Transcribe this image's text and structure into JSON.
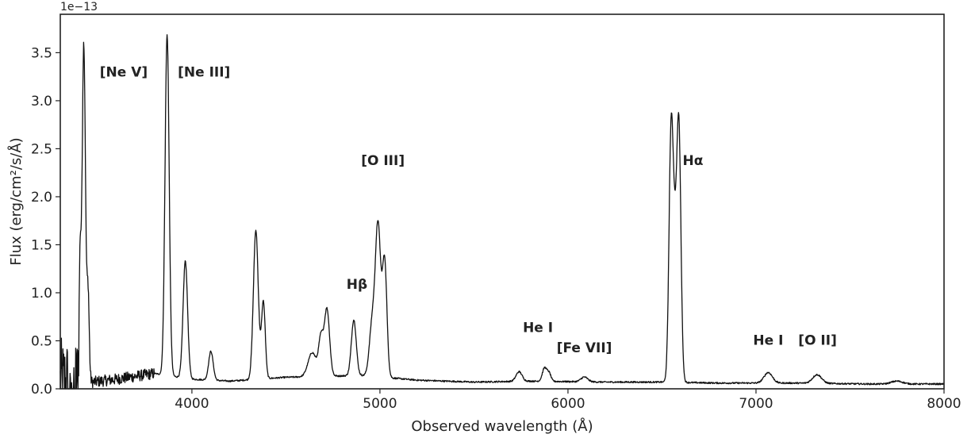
{
  "chart_data": {
    "type": "line",
    "title": "",
    "xlabel": "Observed wavelength (Å)",
    "ylabel": "Flux (erg/cm²/s/Å)",
    "y_offset_label": "1e−13",
    "xlim": [
      3300,
      8000
    ],
    "ylim": [
      0,
      3.9
    ],
    "x_ticks": [
      4000,
      5000,
      6000,
      7000,
      8000
    ],
    "x_tick_labels": [
      "4000",
      "5000",
      "6000",
      "7000",
      "8000"
    ],
    "y_ticks": [
      0.0,
      0.5,
      1.0,
      1.5,
      2.0,
      2.5,
      3.0,
      3.5
    ],
    "y_tick_labels": [
      "0.0",
      "0.5",
      "1.0",
      "1.5",
      "2.0",
      "2.5",
      "3.0",
      "3.5"
    ],
    "grid": false,
    "line_color": "#111111",
    "continuum": [
      [
        3300,
        0.03
      ],
      [
        3600,
        0.1
      ],
      [
        3800,
        0.16
      ],
      [
        4000,
        0.1
      ],
      [
        4200,
        0.08
      ],
      [
        4500,
        0.12
      ],
      [
        4900,
        0.14
      ],
      [
        5200,
        0.09
      ],
      [
        5500,
        0.07
      ],
      [
        5800,
        0.08
      ],
      [
        6200,
        0.07
      ],
      [
        6500,
        0.07
      ],
      [
        6800,
        0.06
      ],
      [
        7200,
        0.06
      ],
      [
        7600,
        0.05
      ],
      [
        8000,
        0.05
      ]
    ],
    "emission_features": [
      {
        "center": 3425,
        "amp": 3.55,
        "sigma": 9
      },
      {
        "center": 3405,
        "amp": 1.2,
        "sigma": 5
      },
      {
        "center": 3448,
        "amp": 0.9,
        "sigma": 6
      },
      {
        "center": 3868,
        "amp": 3.55,
        "sigma": 11
      },
      {
        "center": 3965,
        "amp": 1.22,
        "sigma": 12
      },
      {
        "center": 4101,
        "amp": 0.3,
        "sigma": 12
      },
      {
        "center": 4340,
        "amp": 1.55,
        "sigma": 13
      },
      {
        "center": 4380,
        "amp": 0.8,
        "sigma": 10
      },
      {
        "center": 4640,
        "amp": 0.25,
        "sigma": 22
      },
      {
        "center": 4686,
        "amp": 0.38,
        "sigma": 12
      },
      {
        "center": 4718,
        "amp": 0.7,
        "sigma": 14
      },
      {
        "center": 4861,
        "amp": 0.58,
        "sigma": 13
      },
      {
        "center": 4959,
        "amp": 0.55,
        "sigma": 15
      },
      {
        "center": 4990,
        "amp": 1.55,
        "sigma": 14
      },
      {
        "center": 5025,
        "amp": 1.2,
        "sigma": 12
      },
      {
        "center": 5740,
        "amp": 0.1,
        "sigma": 16
      },
      {
        "center": 5876,
        "amp": 0.14,
        "sigma": 12
      },
      {
        "center": 5900,
        "amp": 0.08,
        "sigma": 10
      },
      {
        "center": 6087,
        "amp": 0.05,
        "sigma": 18
      },
      {
        "center": 6548,
        "amp": 2.45,
        "sigma": 11
      },
      {
        "center": 6590,
        "amp": 2.55,
        "sigma": 11
      },
      {
        "center": 6568,
        "amp": 1.2,
        "sigma": 12
      },
      {
        "center": 7065,
        "amp": 0.11,
        "sigma": 22
      },
      {
        "center": 7325,
        "amp": 0.09,
        "sigma": 24
      },
      {
        "center": 7750,
        "amp": 0.03,
        "sigma": 30
      }
    ],
    "annotations": [
      {
        "text": "[Ne V]",
        "x": 3510,
        "y": 3.25
      },
      {
        "text": "[Ne III]",
        "x": 3925,
        "y": 3.25
      },
      {
        "text": "[O III]",
        "x": 4900,
        "y": 2.33
      },
      {
        "text": "Hβ",
        "x": 4822,
        "y": 1.04
      },
      {
        "text": "He I",
        "x": 5760,
        "y": 0.59
      },
      {
        "text": "[Fe VII]",
        "x": 5940,
        "y": 0.38
      },
      {
        "text": "Hα",
        "x": 6610,
        "y": 2.33
      },
      {
        "text": "He I",
        "x": 6985,
        "y": 0.46
      },
      {
        "text": "[O II]",
        "x": 7225,
        "y": 0.46
      }
    ]
  }
}
